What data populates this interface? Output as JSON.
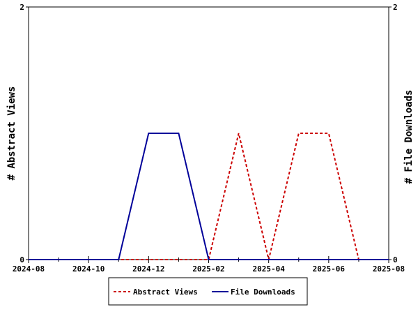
{
  "chart_data": {
    "type": "line",
    "x_months": [
      "2024-08",
      "2024-09",
      "2024-10",
      "2024-11",
      "2024-12",
      "2025-01",
      "2025-02",
      "2025-03",
      "2025-04",
      "2025-05",
      "2025-06",
      "2025-07",
      "2025-08"
    ],
    "x_tick_labels": [
      "2024-08",
      "2024-10",
      "2024-12",
      "2025-02",
      "2025-04",
      "2025-06",
      "2025-08"
    ],
    "ylim": [
      0,
      2
    ],
    "y_left_ticks": [
      "0",
      "2"
    ],
    "y_right_ticks": [
      "0",
      "2"
    ],
    "ylabel_left": "# Abstract Views",
    "ylabel_right": "# File Downloads",
    "series": [
      {
        "name": "Abstract Views",
        "color": "#cc0000",
        "dash": true,
        "axis": "left",
        "values": [
          0,
          0,
          0,
          0,
          0,
          0,
          0,
          1,
          0,
          1,
          1,
          0,
          0
        ]
      },
      {
        "name": "File Downloads",
        "color": "#000099",
        "dash": false,
        "axis": "right",
        "values": [
          0,
          0,
          0,
          0,
          1,
          1,
          0,
          0,
          0,
          0,
          0,
          0,
          0
        ]
      }
    ],
    "legend": {
      "placement": "bottom-center",
      "entries": [
        "Abstract Views",
        "File Downloads"
      ]
    },
    "grid": false
  }
}
